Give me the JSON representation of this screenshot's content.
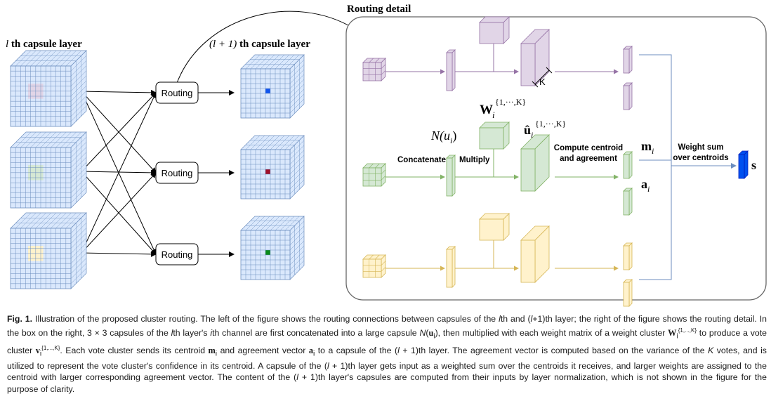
{
  "left": {
    "layer_l_title_var": "l",
    "layer_l_title_rest": " th capsule layer",
    "layer_l1_title_var": "(l + 1)",
    "layer_l1_title_rest": " th capsule layer",
    "routing_labels": [
      "Routing",
      "Routing",
      "Routing"
    ]
  },
  "detail": {
    "title": "Routing detail",
    "k_label": "K",
    "w_label": "W",
    "w_sub": "i",
    "w_sup": "{1,···,K}",
    "n_label": "N(u",
    "n_sub": "i",
    "n_close": ")",
    "u_label": "û",
    "u_sub": "i",
    "u_sup": "{1,···,K}",
    "concatenate_label": "Concatenate",
    "multiply_label": "Multiply",
    "centroid_line1": "Compute centroid",
    "centroid_line2": "and  agreement",
    "m_label": "m",
    "m_sub": "i",
    "a_label": "a",
    "a_sub": "i",
    "weight_line1": "Weight sum",
    "weight_line2": "over centroids",
    "s_label": "s"
  },
  "colors": {
    "purple": "#e1d5e7",
    "purple_stroke": "#9673a6",
    "green": "#d5e8d4",
    "green_stroke": "#82b366",
    "yellow": "#fff2cc",
    "yellow_stroke": "#d6b656",
    "cube_blue": "#dae8fc",
    "cube_stroke": "#6c8ebf",
    "s_blue": "#0050ef"
  },
  "caption": {
    "fig_label": "Fig. 1.",
    "t1": " Illustration of the proposed cluster routing. The left of the figure shows the routing connections between capsules of the ",
    "v_l_1": "l",
    "t2": "th and (",
    "v_l_2": "l",
    "t3": "+1)th layer; the right of the figure shows the routing detail. In the box on the right, 3 × 3 capsules of the ",
    "v_l_3": "l",
    "t4": "th layer's ",
    "v_i_1": "i",
    "t5": "th channel are first concatenated into a large capsule ",
    "v_N": "N",
    "t6": "(",
    "v_u": "u",
    "v_u_sub": "i",
    "t7": "), then multiplied with each weight matrix of a weight cluster ",
    "v_W": "W",
    "v_W_sub": "i",
    "v_W_sup": "{1,...,K}",
    "t8": " to produce a vote cluster ",
    "v_v": "v",
    "v_v_sub": "i",
    "v_v_sup": "{1,...,K}",
    "t9": ". Each vote cluster sends its centroid ",
    "v_m": "m",
    "v_m_sub": "i",
    "t10": " and agreement vector ",
    "v_a": "a",
    "v_a_sub": "i",
    "t11": " to a capsule of the (",
    "v_l_4": "l",
    "t12": " + 1)th layer. The agreement vector is computed based on the variance of the ",
    "v_K": "K",
    "t13": " votes, and is utilized to represent the vote cluster's confidence in its centroid. A capsule of the (",
    "v_l_5": "l",
    "t14": " + 1)th layer gets input as a weighted sum over the centroids it receives, and larger weights are assigned to the centroid with larger corresponding agreement vector. The content of the (",
    "v_l_6": "l",
    "t15": " + 1)th layer's capsules are computed from their inputs by layer normalization, which is not shown in the figure for the purpose of clarity."
  }
}
